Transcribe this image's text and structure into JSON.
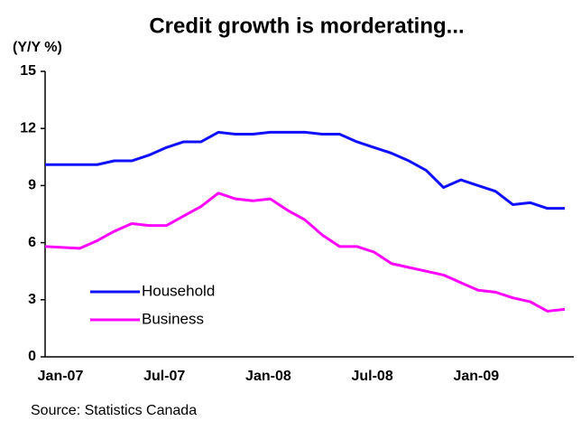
{
  "chart_data": {
    "type": "line",
    "title": "Credit growth is morderating...",
    "y_label": "(Y/Y %)",
    "source": "Source: Statistics Canada",
    "categories": [
      "Jan-07",
      null,
      null,
      null,
      null,
      null,
      "Jul-07",
      null,
      null,
      null,
      null,
      null,
      "Jan-08",
      null,
      null,
      null,
      null,
      null,
      "Jul-08",
      null,
      null,
      null,
      null,
      null,
      "Jan-09",
      null,
      null,
      null,
      null,
      null,
      null
    ],
    "series": [
      {
        "name": "Household",
        "color": "#1010ff",
        "values": [
          10.1,
          10.1,
          10.1,
          10.1,
          10.3,
          10.3,
          10.6,
          11.0,
          11.3,
          11.3,
          11.8,
          11.7,
          11.7,
          11.8,
          11.8,
          11.8,
          11.7,
          11.7,
          11.3,
          11.0,
          10.7,
          10.3,
          9.8,
          8.9,
          9.3,
          9.0,
          8.7,
          8.0,
          8.1,
          7.8,
          7.8
        ]
      },
      {
        "name": "Business",
        "color": "#ff00ff",
        "values": [
          5.8,
          5.75,
          5.7,
          6.1,
          6.6,
          7.0,
          6.9,
          6.9,
          7.4,
          7.9,
          8.6,
          8.3,
          8.2,
          8.3,
          7.7,
          7.2,
          6.4,
          5.8,
          5.8,
          5.5,
          4.9,
          4.7,
          4.5,
          4.3,
          3.9,
          3.5,
          3.4,
          3.1,
          2.9,
          2.4,
          2.5
        ]
      }
    ],
    "ylim": [
      0,
      15
    ],
    "yticks": [
      0,
      3,
      6,
      9,
      12,
      15
    ],
    "legend": "lower left",
    "grid": false
  }
}
